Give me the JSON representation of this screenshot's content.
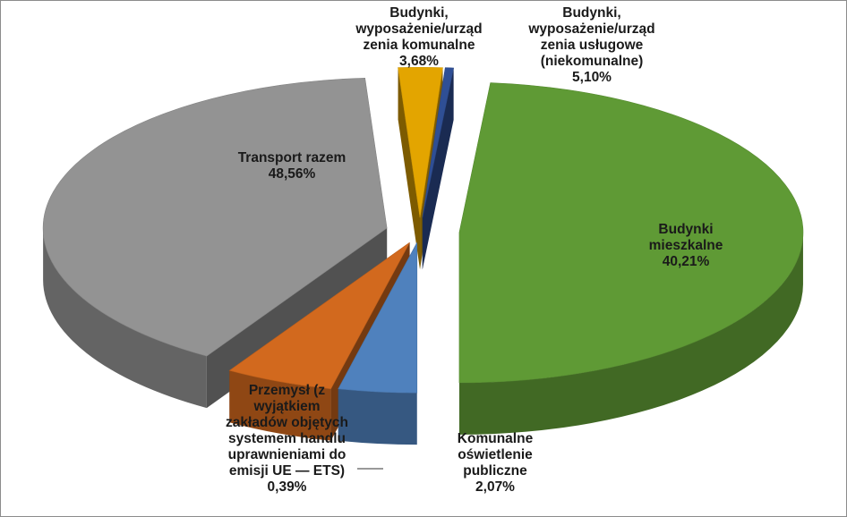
{
  "chart_data": {
    "type": "pie",
    "style": "3d-exploded",
    "slices": [
      {
        "label": "Budynki, wyposażenie/urządzenia komunalne",
        "lines": [
          "Budynki,",
          "wyposażenie/urząd",
          "zenia komunalne",
          "3,68%"
        ],
        "value": 3.68,
        "value_text": "3,68%",
        "color": "#4f81bd"
      },
      {
        "label": "Budynki, wyposażenie/urządzenia usługowe (niekomunalne)",
        "lines": [
          "Budynki,",
          "wyposażenie/urząd",
          "zenia usługowe",
          "(niekomunalne)",
          "5,10%"
        ],
        "value": 5.1,
        "value_text": "5,10%",
        "color": "#d2691e"
      },
      {
        "label": "Budynki mieszkalne",
        "lines": [
          "Budynki",
          "mieszkalne",
          "40,21%"
        ],
        "value": 40.21,
        "value_text": "40,21%",
        "color": "#939393"
      },
      {
        "label": "Komunalne oświetlenie publiczne",
        "lines": [
          "Komunalne",
          "oświetlenie",
          "publiczne",
          "2,07%"
        ],
        "value": 2.07,
        "value_text": "2,07%",
        "color": "#e3a500"
      },
      {
        "label": "Przemysł (z wyjątkiem zakładów objętych systemem handlu uprawnieniami do emisji UE — ETS)",
        "lines": [
          "Przemysł (z",
          "wyjątkiem",
          "zakładów objętych",
          "systemem handlu",
          "uprawnieniami do",
          "emisji UE — ETS)",
          "0,39%"
        ],
        "value": 0.39,
        "value_text": "0,39%",
        "color": "#2f4f95"
      },
      {
        "label": "Transport razem",
        "lines": [
          "Transport razem",
          "48,56%"
        ],
        "value": 48.56,
        "value_text": "48,56%",
        "color": "#5f9a35"
      }
    ]
  }
}
